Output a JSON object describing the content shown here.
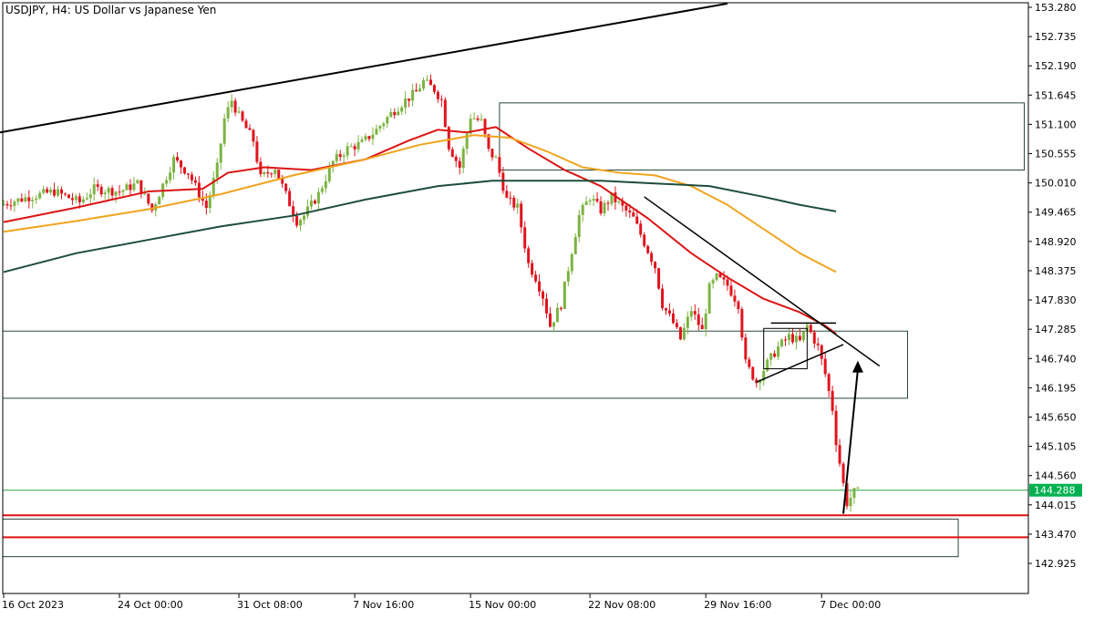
{
  "header": {
    "symbol": "USDJPY",
    "timeframe": "H4",
    "description": "US Dollar vs Japanese Yen",
    "full": "USDJPY, H4:  US Dollar vs Japanese Yen"
  },
  "price_badge": {
    "value": "144.288",
    "bg_color": "#00b050",
    "text_color": "#ffffff"
  },
  "colors": {
    "bull": "#7cb342",
    "bear": "#e0141e",
    "ema_fast": "#dc1414",
    "ema_mid": "#f0a41e",
    "ema_slow": "#1e4d3c",
    "zone_border": "#2a4a38",
    "level_red": "#e01010",
    "level_green": "#28a045",
    "trendline": "#000000"
  },
  "chart_data": {
    "type": "candlestick",
    "title": "USDJPY, H4:  US Dollar vs Japanese Yen",
    "ylim": [
      142.4,
      153.4
    ],
    "y_ticks": [
      "153.280",
      "152.735",
      "152.190",
      "151.645",
      "151.100",
      "150.555",
      "150.010",
      "149.465",
      "148.920",
      "148.375",
      "147.830",
      "147.285",
      "146.740",
      "146.195",
      "145.650",
      "145.105",
      "144.560",
      "144.015",
      "143.470",
      "142.925"
    ],
    "x_tick_labels": [
      "16 Oct 2023",
      "24 Oct 00:00",
      "31 Oct 08:00",
      "7 Nov 16:00",
      "15 Nov 00:00",
      "22 Nov 08:00",
      "29 Nov 16:00",
      "7 Dec 00:00"
    ],
    "price_path": [
      [
        0,
        149.6
      ],
      [
        8,
        149.75
      ],
      [
        15,
        149.85
      ],
      [
        22,
        149.65
      ],
      [
        26,
        149.9
      ],
      [
        33,
        149.85
      ],
      [
        38,
        150.0
      ],
      [
        42,
        149.5
      ],
      [
        48,
        150.45
      ],
      [
        52,
        150.2
      ],
      [
        57,
        149.55
      ],
      [
        60,
        150.3
      ],
      [
        62,
        151.2
      ],
      [
        64,
        151.55
      ],
      [
        66,
        151.25
      ],
      [
        70,
        150.8
      ],
      [
        72,
        150.1
      ],
      [
        76,
        150.3
      ],
      [
        78,
        149.95
      ],
      [
        82,
        149.3
      ],
      [
        84,
        149.4
      ],
      [
        88,
        149.8
      ],
      [
        92,
        150.4
      ],
      [
        96,
        150.65
      ],
      [
        100,
        150.75
      ],
      [
        104,
        151.0
      ],
      [
        108,
        151.3
      ],
      [
        112,
        151.55
      ],
      [
        115,
        151.7
      ],
      [
        117,
        151.9
      ],
      [
        120,
        151.75
      ],
      [
        122,
        151.55
      ],
      [
        124,
        150.7
      ],
      [
        127,
        150.3
      ],
      [
        130,
        151.25
      ],
      [
        133,
        151.15
      ],
      [
        135,
        150.6
      ],
      [
        137,
        150.45
      ],
      [
        140,
        149.7
      ],
      [
        143,
        149.55
      ],
      [
        146,
        148.5
      ],
      [
        148,
        148.25
      ],
      [
        150,
        147.9
      ],
      [
        152,
        147.35
      ],
      [
        155,
        147.75
      ],
      [
        158,
        148.75
      ],
      [
        160,
        149.4
      ],
      [
        163,
        149.75
      ],
      [
        166,
        149.5
      ],
      [
        169,
        149.75
      ],
      [
        172,
        149.55
      ],
      [
        175,
        149.35
      ],
      [
        178,
        148.9
      ],
      [
        181,
        148.45
      ],
      [
        183,
        147.75
      ],
      [
        186,
        147.4
      ],
      [
        188,
        147.1
      ],
      [
        191,
        147.65
      ],
      [
        194,
        147.25
      ],
      [
        196,
        148.05
      ],
      [
        198,
        148.25
      ],
      [
        201,
        148.1
      ],
      [
        204,
        147.75
      ],
      [
        206,
        146.65
      ],
      [
        209,
        146.3
      ],
      [
        212,
        146.65
      ],
      [
        215,
        146.95
      ],
      [
        218,
        147.15
      ],
      [
        221,
        147.05
      ],
      [
        223,
        147.35
      ],
      [
        226,
        146.95
      ],
      [
        228,
        146.45
      ],
      [
        230,
        145.8
      ],
      [
        231,
        145.2
      ],
      [
        233,
        144.4
      ],
      [
        234,
        144.05
      ],
      [
        236,
        144.25
      ]
    ],
    "series": [
      {
        "name": "",
        "color": "#dc1414",
        "points": [
          [
            0,
            149.28
          ],
          [
            20,
            149.55
          ],
          [
            40,
            149.85
          ],
          [
            55,
            149.9
          ],
          [
            62,
            150.2
          ],
          [
            72,
            150.3
          ],
          [
            85,
            150.25
          ],
          [
            100,
            150.45
          ],
          [
            112,
            150.8
          ],
          [
            120,
            151.0
          ],
          [
            128,
            150.95
          ],
          [
            136,
            151.05
          ],
          [
            145,
            150.65
          ],
          [
            155,
            150.25
          ],
          [
            165,
            149.95
          ],
          [
            178,
            149.35
          ],
          [
            190,
            148.7
          ],
          [
            200,
            148.25
          ],
          [
            210,
            147.85
          ],
          [
            220,
            147.6
          ],
          [
            227,
            147.35
          ],
          [
            230,
            147.2
          ]
        ]
      },
      {
        "name": "",
        "color": "#f0a41e",
        "points": [
          [
            0,
            149.1
          ],
          [
            20,
            149.3
          ],
          [
            40,
            149.52
          ],
          [
            60,
            149.8
          ],
          [
            80,
            150.15
          ],
          [
            100,
            150.45
          ],
          [
            115,
            150.72
          ],
          [
            130,
            150.9
          ],
          [
            140,
            150.85
          ],
          [
            150,
            150.6
          ],
          [
            160,
            150.3
          ],
          [
            170,
            150.2
          ],
          [
            180,
            150.15
          ],
          [
            190,
            149.95
          ],
          [
            200,
            149.6
          ],
          [
            210,
            149.15
          ],
          [
            220,
            148.7
          ],
          [
            230,
            148.35
          ]
        ]
      },
      {
        "name": "",
        "color": "#1e4d3c",
        "points": [
          [
            0,
            148.35
          ],
          [
            20,
            148.7
          ],
          [
            40,
            148.95
          ],
          [
            60,
            149.2
          ],
          [
            80,
            149.4
          ],
          [
            100,
            149.7
          ],
          [
            120,
            149.95
          ],
          [
            135,
            150.05
          ],
          [
            150,
            150.05
          ],
          [
            165,
            150.05
          ],
          [
            180,
            150.0
          ],
          [
            195,
            149.95
          ],
          [
            210,
            149.75
          ],
          [
            220,
            149.6
          ],
          [
            230,
            149.48
          ]
        ]
      }
    ],
    "zones": [
      {
        "x1": 137,
        "x2": 282,
        "y1": 151.5,
        "y2": 150.25
      },
      {
        "x1": 0,
        "x2": 250,
        "y1": 147.25,
        "y2": 146.0
      },
      {
        "x1": 0,
        "x2": 264,
        "y1": 143.75,
        "y2": 143.05
      }
    ],
    "horizontal_lines": [
      {
        "price": 143.82,
        "color": "#e01010"
      },
      {
        "price": 143.41,
        "color": "#e01010"
      },
      {
        "price": 144.288,
        "color": "#28a045"
      }
    ],
    "trendlines": [
      {
        "x1": 0,
        "y1": 150.95,
        "x2": 200,
        "y2": 153.35
      },
      {
        "x1": 177,
        "y1": 149.75,
        "x2": 242,
        "y2": 146.6
      },
      {
        "x1": 208,
        "y1": 146.3,
        "x2": 232,
        "y2": 147.0
      },
      {
        "x1": 212,
        "y1": 147.4,
        "x2": 230,
        "y2": 147.4
      }
    ],
    "inner_box": {
      "x1": 210,
      "x2": 222,
      "y1": 147.3,
      "y2": 146.55
    },
    "arrow": {
      "x1": 232,
      "y1": 143.85,
      "x2": 236,
      "y2": 146.7
    },
    "x_tick_positions": [
      0,
      32,
      65,
      97,
      129,
      162,
      194,
      226
    ]
  }
}
